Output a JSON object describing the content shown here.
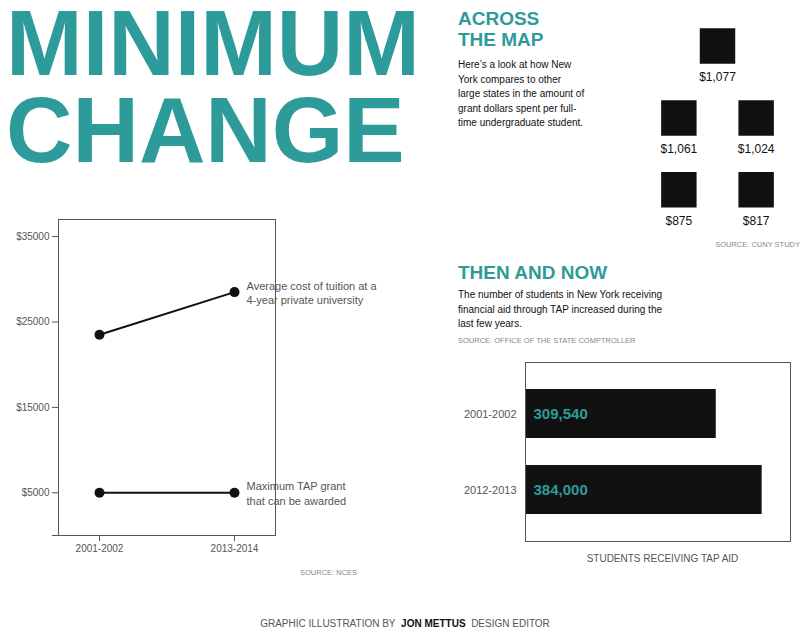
{
  "chart_data": [
    {
      "type": "line",
      "title": "MINIMUM\nCHANGE",
      "categories": [
        "2001-2002",
        "2013-2014"
      ],
      "series": [
        {
          "name": "Average cost of tuition at a\n4-year private university",
          "color": "#111111",
          "marker": "o",
          "values": [
            23500,
            28500
          ]
        },
        {
          "name": "Maximum TAP grant\nthat can be awarded",
          "color": "#111111",
          "marker": "o",
          "values": [
            5000,
            5000
          ]
        }
      ],
      "ylim": [
        0,
        37000
      ],
      "yticks": [
        {
          "value": 0,
          "label": ""
        },
        {
          "value": 5000,
          "label": "$5000"
        },
        {
          "value": 15000,
          "label": "$15000"
        },
        {
          "value": 25000,
          "label": "$25000"
        },
        {
          "value": 35000,
          "label": "$35000"
        }
      ],
      "annotations": [
        "SOURCE: NCES",
        "GRAPHIC ILLUSTRATION BY",
        "JON METTUS",
        "DESIGN EDITOR"
      ]
    },
    {
      "type": "map",
      "title": "ACROSS\nTHE MAP",
      "subtitle": "Here’s a look at how New\nYork compares to other\nlarge states in the amount of\ngrant dollars spent per full-\ntime undergraduate student.",
      "values": [
        1077,
        1061,
        1024,
        875,
        817
      ],
      "value_labels": [
        "$1,077",
        "$1,061",
        "$1,024",
        "$875",
        "$817"
      ],
      "data_labels": true,
      "color": "#111111",
      "annotations": [
        "SOURCE: CUNY STUDY"
      ]
    },
    {
      "type": "bar",
      "orientation": "horizontal",
      "title": "THEN AND NOW",
      "subtitle": "The number of students in New York receiving\nfinancial aid through TAP increased during the\nlast few years.",
      "categories": [
        "2001-2002",
        "2012-2013"
      ],
      "values": [
        309540,
        384000
      ],
      "value_labels": [
        "309,540",
        "384,000"
      ],
      "data_labels": true,
      "color": "#111111",
      "xlabel": "STUDENTS RECEIVING TAP AID",
      "xlim": [
        0,
        430000
      ],
      "tick_labels": "y",
      "annotations": [
        "SOURCE: OFFICE OF THE STATE COMPTROLLER"
      ]
    }
  ]
}
